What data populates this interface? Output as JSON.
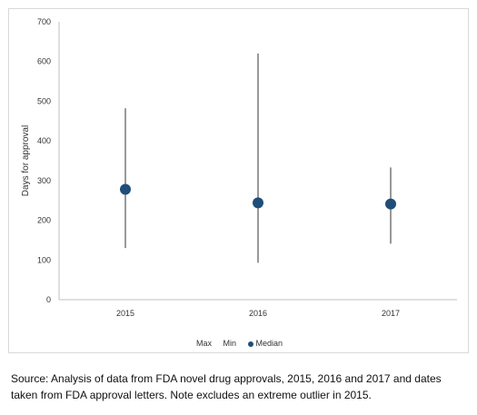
{
  "chart_data": {
    "type": "scatter",
    "categories": [
      "2015",
      "2016",
      "2017"
    ],
    "series": [
      {
        "name": "Max",
        "values": [
          482,
          620,
          333
        ]
      },
      {
        "name": "Min",
        "values": [
          130,
          93,
          141
        ]
      },
      {
        "name": "Median",
        "values": [
          278,
          244,
          241
        ]
      }
    ],
    "ylabel": "Days for approval",
    "ylim": [
      0,
      700
    ],
    "yticks": [
      "0",
      "100",
      "200",
      "300",
      "400",
      "500",
      "600",
      "700"
    ],
    "grid": false,
    "legend_position": "bottom",
    "colors": {
      "median": "#1f4e79",
      "range_line": "#333333",
      "axis": "#bfbfbf"
    }
  },
  "legend": {
    "max": "Max",
    "min": "Min",
    "median": "Median"
  },
  "source_note": "Source: Analysis of data from FDA novel drug approvals, 2015, 2016 and 2017 and dates taken from FDA approval letters. Note excludes an extreme outlier in 2015."
}
